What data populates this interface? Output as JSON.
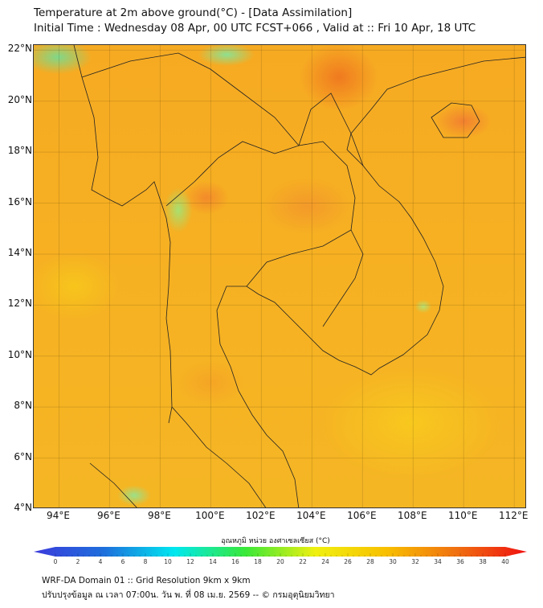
{
  "title": {
    "line1": "Temperature at 2m above ground(°C) - [Data Assimilation]",
    "line2": "Initial Time : Wednesday 08 Apr, 00 UTC FCST+066 , Valid at :: Fri 10 Apr, 18 UTC"
  },
  "map": {
    "lat_labels": [
      "22°N",
      "20°N",
      "18°N",
      "16°N",
      "14°N",
      "12°N",
      "10°N",
      "8°N",
      "6°N",
      "4°N"
    ],
    "lat_values": [
      22,
      20,
      18,
      16,
      14,
      12,
      10,
      8,
      6,
      4
    ],
    "lon_labels": [
      "94°E",
      "96°E",
      "98°E",
      "100°E",
      "102°E",
      "104°E",
      "106°E",
      "108°E",
      "110°E",
      "112°E"
    ],
    "lon_values": [
      94,
      96,
      98,
      100,
      102,
      104,
      106,
      108,
      110,
      112
    ],
    "lon_range": [
      93,
      112.5
    ],
    "lat_range": [
      4,
      22.2
    ]
  },
  "colorbar": {
    "title": "อุณหภูมิ หน่วย องศาเซลเซียส (°C)",
    "tick_labels": [
      "0",
      "2",
      "4",
      "6",
      "8",
      "10",
      "12",
      "14",
      "16",
      "18",
      "20",
      "22",
      "24",
      "26",
      "28",
      "30",
      "32",
      "34",
      "36",
      "38",
      "40"
    ],
    "range": [
      0,
      40
    ],
    "colors": [
      "#3b3bdc",
      "#1e6fdc",
      "#00e8f0",
      "#38e838",
      "#f0f010",
      "#f8c000",
      "#f07010",
      "#f01010"
    ]
  },
  "footer": {
    "line1": "WRF-DA Domain 01 :: Grid Resolution 9km x 9km",
    "line2": "ปรับปรุงข้อมูล ณ เวลา 07:00น. วัน พ. ที่ 08 เม.ย. 2569 -- © กรมอุตุนิยมวิทยา"
  }
}
